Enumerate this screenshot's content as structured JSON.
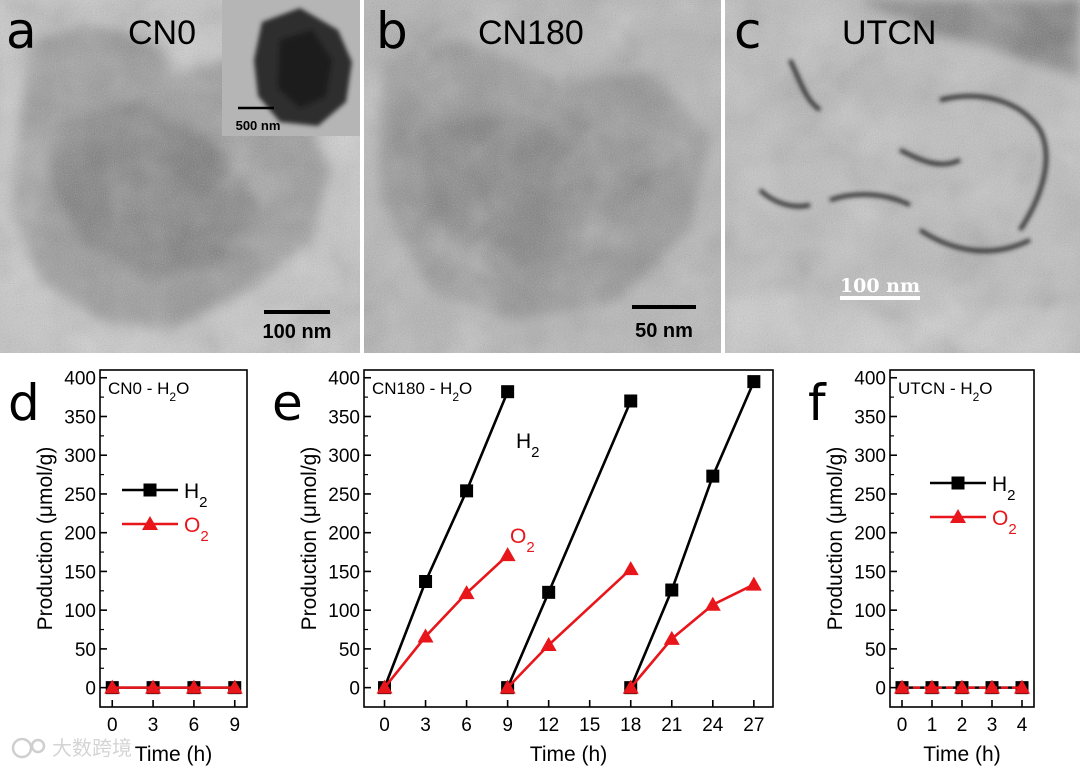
{
  "tem_panels": [
    {
      "letter": "a",
      "label": "CN0",
      "scale_bar": "100 nm",
      "inset_scale_bar": "500 nm"
    },
    {
      "letter": "b",
      "label": "CN180",
      "scale_bar": "50 nm"
    },
    {
      "letter": "c",
      "label": "UTCN",
      "scale_bar": "100 nm"
    }
  ],
  "watermark": "大数跨境",
  "colors": {
    "h2": "#000000",
    "o2": "#e8161b"
  },
  "chart_data": [
    {
      "type": "line",
      "letter": "d",
      "title": "CN0 - H₂O",
      "xlabel": "Time (h)",
      "ylabel": "Production (μmol/g)",
      "xlim": [
        -0.9,
        9.9
      ],
      "ylim": [
        -25,
        410
      ],
      "xticks": [
        0,
        3,
        6,
        9
      ],
      "yticks": [
        0,
        50,
        100,
        150,
        200,
        250,
        300,
        350,
        400
      ],
      "legend": [
        "H₂",
        "O₂"
      ],
      "legend_position": "center-left",
      "series": [
        {
          "name": "H₂",
          "color": "#000000",
          "marker": "square",
          "segments": [
            {
              "x": [
                0,
                3,
                6,
                9
              ],
              "y": [
                0,
                0,
                0,
                0
              ]
            }
          ]
        },
        {
          "name": "O₂",
          "color": "#e8161b",
          "marker": "triangle",
          "segments": [
            {
              "x": [
                0,
                3,
                6,
                9
              ],
              "y": [
                0,
                0,
                0,
                0
              ]
            }
          ]
        }
      ]
    },
    {
      "type": "line",
      "letter": "e",
      "title": "CN180 - H₂O",
      "xlabel": "Time (h)",
      "ylabel": "Production (μmol/g)",
      "xlim": [
        -1.5,
        28.4
      ],
      "ylim": [
        -25,
        410
      ],
      "xticks": [
        0,
        3,
        6,
        9,
        12,
        15,
        18,
        21,
        24,
        27
      ],
      "yticks": [
        0,
        50,
        100,
        150,
        200,
        250,
        300,
        350,
        400
      ],
      "annotations": [
        "H₂",
        "O₂"
      ],
      "series": [
        {
          "name": "H₂",
          "color": "#000000",
          "marker": "square",
          "segments": [
            {
              "x": [
                0,
                3,
                6,
                9
              ],
              "y": [
                0,
                137,
                254,
                382
              ]
            },
            {
              "x": [
                9,
                12,
                18
              ],
              "y": [
                0,
                123,
                370
              ]
            },
            {
              "x": [
                18,
                21,
                24,
                27
              ],
              "y": [
                0,
                126,
                273,
                395
              ]
            }
          ]
        },
        {
          "name": "O₂",
          "color": "#e8161b",
          "marker": "triangle",
          "segments": [
            {
              "x": [
                0,
                3,
                6,
                9
              ],
              "y": [
                0,
                66,
                122,
                171
              ]
            },
            {
              "x": [
                9,
                12,
                18
              ],
              "y": [
                0,
                55,
                153
              ]
            },
            {
              "x": [
                18,
                21,
                24,
                27
              ],
              "y": [
                0,
                63,
                107,
                133
              ]
            }
          ]
        }
      ]
    },
    {
      "type": "line",
      "letter": "f",
      "title": "UTCN - H₂O",
      "xlabel": "Time (h)",
      "ylabel": "Production (μmol/g)",
      "xlim": [
        -0.4,
        4.4
      ],
      "ylim": [
        -25,
        410
      ],
      "xticks": [
        0,
        1,
        2,
        3,
        4
      ],
      "yticks": [
        0,
        50,
        100,
        150,
        200,
        250,
        300,
        350,
        400
      ],
      "legend": [
        "H₂",
        "O₂"
      ],
      "legend_position": "center-right",
      "series": [
        {
          "name": "H₂",
          "color": "#000000",
          "marker": "square",
          "segments": [
            {
              "x": [
                0,
                1,
                2,
                3,
                4
              ],
              "y": [
                0,
                0,
                0,
                0,
                0
              ]
            }
          ]
        },
        {
          "name": "O₂",
          "color": "#e8161b",
          "marker": "triangle",
          "dashed": true,
          "segments": [
            {
              "x": [
                0,
                1,
                2,
                3,
                4
              ],
              "y": [
                0,
                0,
                0,
                0,
                0
              ]
            }
          ]
        }
      ]
    }
  ]
}
